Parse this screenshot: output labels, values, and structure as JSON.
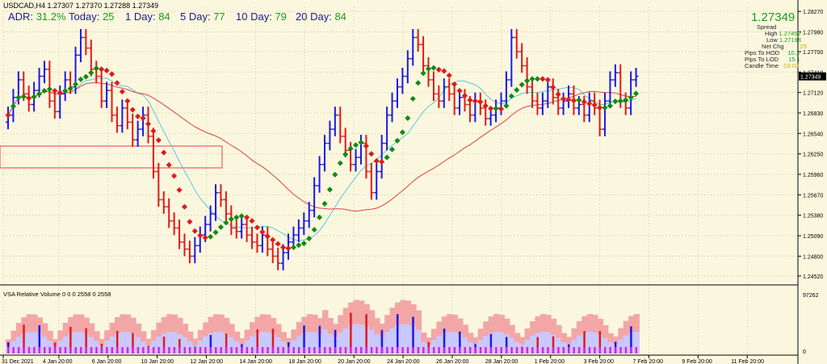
{
  "header": {
    "symbol_line": "USDCAD,H4  1.27307 1.27370 1.27288 1.27349",
    "adr": {
      "label": "ADR:",
      "value": "31.2%"
    },
    "today": {
      "label": "Today:",
      "value": "25"
    },
    "day1": {
      "label": "1 Day:",
      "value": "84"
    },
    "day5": {
      "label": "5 Day:",
      "value": "77"
    },
    "day10": {
      "label": "10 Day:",
      "value": "79"
    },
    "day20": {
      "label": "20 Day:",
      "value": "84"
    }
  },
  "stats": {
    "price": "1.27349",
    "spread_label": "Spread",
    "high_label": "High",
    "high": "1.27452",
    "low_label": "Low",
    "low": "1.27198",
    "netchg_label": "Net Chg",
    "netchg": "25",
    "hod_label": "Pips To HOD",
    "hod": "10.3",
    "lod_label": "Pips To LOD",
    "lod": "15.1",
    "candle_label": "Candle Time",
    "candle": "03:03"
  },
  "volume_panel": {
    "title": "VSA Relative Volume 0 0 0 2558 0 2558",
    "top_label": "97262",
    "bottom_label": "0"
  },
  "colors": {
    "background": "#fbf7df",
    "grid": "#e3dcb7",
    "bull": "#1a1ae6",
    "bear": "#e01a1a",
    "ma_up": "#128a12",
    "ma_down": "#e01a1a",
    "ma_slow": "#e04040",
    "ma_fast": "#5bc8dc"
  },
  "chart_data": {
    "type": "line",
    "title": "USDCAD,H4",
    "ylim": [
      1.2445,
      1.2834
    ],
    "yticks": [
      "1.28270",
      "1.27980",
      "1.27700",
      "1.27410",
      "1.27120",
      "1.26830",
      "1.26540",
      "1.26250",
      "1.25960",
      "1.25670",
      "1.25380",
      "1.25090",
      "1.24800",
      "1.24520"
    ],
    "current_price": "1.27349",
    "xticks": [
      "31 Dec 2021",
      "4 Jan 20:00",
      "6 Jan 20:00",
      "10 Jan 20:00",
      "12 Jan 20:00",
      "14 Jan 20:00",
      "18 Jan 20:00",
      "20 Jan 20:00",
      "24 Jan 20:00",
      "26 Jan 20:00",
      "28 Jan 20:00",
      "1 Feb 20:00",
      "3 Feb 20:00",
      "7 Feb 20:00",
      "9 Feb 20:00",
      "11 Feb 20:00"
    ],
    "series": [
      {
        "values": [
          1.268,
          1.2705,
          1.273,
          1.271,
          1.2695,
          1.2715,
          1.2735,
          1.2745,
          1.27,
          1.2685,
          1.271,
          1.273,
          1.272,
          1.2765,
          1.279,
          1.2775,
          1.2745,
          1.2735,
          1.27,
          1.2715,
          1.268,
          1.2665,
          1.269,
          1.267,
          1.2645,
          1.266,
          1.268,
          1.265,
          1.26,
          1.256,
          1.255,
          1.253,
          1.252,
          1.25,
          1.249,
          1.248,
          1.2495,
          1.251,
          1.2525,
          1.254,
          1.257,
          1.256,
          1.254,
          1.252,
          1.2515,
          1.2525,
          1.251,
          1.25,
          1.2495,
          1.251,
          1.249,
          1.248,
          1.247,
          1.2485,
          1.25,
          1.251,
          1.252,
          1.253,
          1.2545,
          1.258,
          1.261,
          1.264,
          1.266,
          1.268,
          1.265,
          1.263,
          1.261,
          1.262,
          1.264,
          1.26,
          1.257,
          1.26,
          1.264,
          1.268,
          1.27,
          1.272,
          1.2735,
          1.276,
          1.279,
          1.278,
          1.275,
          1.273,
          1.271,
          1.27,
          1.272,
          1.271,
          1.269,
          1.2705,
          1.2695,
          1.268,
          1.27,
          1.269,
          1.2675,
          1.268,
          1.269,
          1.27,
          1.273,
          1.279,
          1.277,
          1.275,
          1.272,
          1.27,
          1.269,
          1.27,
          1.272,
          1.2705,
          1.269,
          1.27,
          1.271,
          1.269,
          1.2695,
          1.268,
          1.27,
          1.269,
          1.266,
          1.27,
          1.273,
          1.274,
          1.27,
          1.269,
          1.273,
          1.2735
        ]
      }
    ]
  }
}
